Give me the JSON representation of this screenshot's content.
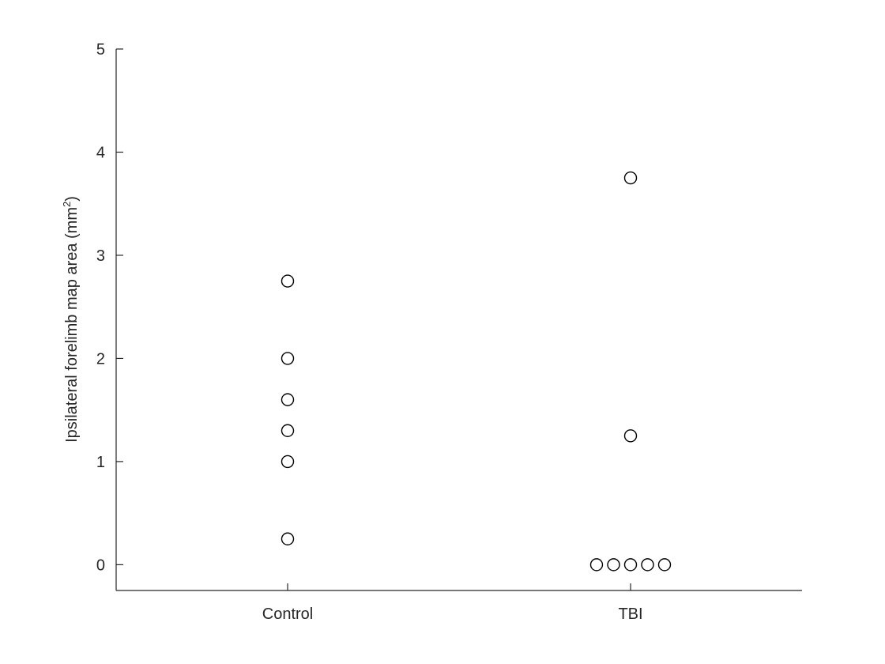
{
  "chart_data": {
    "type": "scatter",
    "title": "",
    "xlabel": "",
    "ylabel": "Ipsilateral  forelimb  map  area  (mm",
    "ylabel_superscript": "2",
    "ylabel_suffix": ")",
    "categories": [
      "Control",
      "TBI"
    ],
    "ylim": [
      -0.25,
      5
    ],
    "yticks": [
      0,
      1,
      2,
      3,
      4,
      5
    ],
    "grid": false,
    "marker": "open-circle",
    "colors": {
      "axis": "#262626",
      "marker": "#000000"
    },
    "series": [
      {
        "category": "Control",
        "values": [
          2.75,
          2.0,
          1.6,
          1.3,
          1.0,
          0.25
        ]
      },
      {
        "category": "TBI",
        "values": [
          3.75,
          1.25,
          0,
          0,
          0,
          0,
          0
        ]
      }
    ]
  }
}
